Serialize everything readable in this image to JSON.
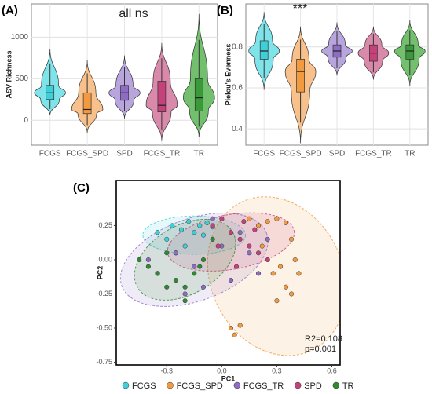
{
  "chart_data": [
    {
      "type": "violin",
      "panel_label": "(A)",
      "annotation": "all ns",
      "y_label": "ASV Richness",
      "categories": [
        "FCGS",
        "FCGS_SPD",
        "SPD",
        "FCGS_TR",
        "TR"
      ],
      "colors": [
        "#7fe3ea",
        "#f8c08a",
        "#b9a5dd",
        "#d98aab",
        "#72c06d"
      ],
      "box_colors": [
        "#3fcfd8",
        "#f39a3e",
        "#8e6cc4",
        "#c4417a",
        "#3a9a3a"
      ],
      "stats": [
        {
          "min": 60,
          "q1": 250,
          "median": 330,
          "q3": 420,
          "max": 860
        },
        {
          "min": -150,
          "q1": 80,
          "median": 130,
          "q3": 330,
          "max": 720
        },
        {
          "min": 20,
          "q1": 240,
          "median": 330,
          "q3": 420,
          "max": 780
        },
        {
          "min": -250,
          "q1": 100,
          "median": 180,
          "q3": 470,
          "max": 930
        },
        {
          "min": -200,
          "q1": 110,
          "median": 270,
          "q3": 500,
          "max": 1280
        }
      ],
      "ylim": [
        -300,
        1400
      ],
      "yticks": [
        0,
        500,
        1000
      ],
      "grid": true
    },
    {
      "type": "violin",
      "panel_label": "(B)",
      "annotation": "***",
      "y_label": "Pielou's Evenness",
      "categories": [
        "FCGS",
        "FCGS_SPD",
        "SPD",
        "FCGS_TR",
        "TR"
      ],
      "colors": [
        "#7fe3ea",
        "#f8c08a",
        "#b9a5dd",
        "#d98aab",
        "#72c06d"
      ],
      "box_colors": [
        "#3fcfd8",
        "#f39a3e",
        "#8e6cc4",
        "#c4417a",
        "#3a9a3a"
      ],
      "stats": [
        {
          "min": 0.59,
          "q1": 0.74,
          "median": 0.78,
          "q3": 0.83,
          "max": 0.97
        },
        {
          "min": 0.33,
          "q1": 0.58,
          "median": 0.68,
          "q3": 0.74,
          "max": 0.9
        },
        {
          "min": 0.66,
          "q1": 0.75,
          "median": 0.78,
          "q3": 0.81,
          "max": 0.92
        },
        {
          "min": 0.64,
          "q1": 0.73,
          "median": 0.77,
          "q3": 0.81,
          "max": 0.9
        },
        {
          "min": 0.61,
          "q1": 0.74,
          "median": 0.78,
          "q3": 0.81,
          "max": 0.93
        }
      ],
      "ylim": [
        0.32,
        1.01
      ],
      "yticks": [
        0.4,
        0.6,
        0.8
      ],
      "grid": true
    },
    {
      "type": "scatter",
      "panel_label": "(C)",
      "x_label": "PC1",
      "y_label": "PC2",
      "annotations": [
        "R2=0.108",
        "p=0.001"
      ],
      "xlim": [
        -0.575,
        0.645
      ],
      "xticks": [
        -0.3,
        {
          "value": 0,
          "label": "0.0"
        },
        0.3,
        0.6
      ],
      "ylim": [
        -0.77,
        0.58
      ],
      "yticks": [
        0.25,
        {
          "value": 0,
          "label": "0.00"
        },
        -0.25,
        {
          "value": -0.5,
          "label": "-0.50"
        },
        -0.75
      ],
      "grid": false,
      "legend": "bottom",
      "series": [
        {
          "name": "FCGS",
          "color": "#3fcfd8",
          "x": [
            -0.35,
            -0.3,
            -0.27,
            -0.22,
            -0.18,
            -0.15,
            -0.12,
            -0.08,
            -0.05,
            -0.2,
            -0.1,
            -0.25
          ],
          "values": [
            0.2,
            0.15,
            0.25,
            0.22,
            0.28,
            0.2,
            0.25,
            0.27,
            0.24,
            0.1,
            0.18,
            0.05
          ],
          "ellipse": {
            "cx": -0.15,
            "cy": 0.18,
            "rx": 0.28,
            "ry": 0.14,
            "angle": 0
          }
        },
        {
          "name": "FCGS_SPD",
          "color": "#f39a3e",
          "x": [
            0.15,
            0.2,
            0.25,
            0.3,
            0.35,
            0.38,
            0.4,
            0.32,
            0.28,
            0.22,
            0.35,
            0.3,
            0.05,
            0.07,
            0.1,
            0.42,
            0.38
          ],
          "values": [
            0.3,
            0.25,
            0.28,
            0.3,
            0.27,
            0.15,
            0.0,
            -0.05,
            -0.1,
            0.1,
            -0.2,
            -0.3,
            -0.5,
            -0.55,
            -0.48,
            -0.1,
            -0.25
          ],
          "ellipse": {
            "cx": 0.3,
            "cy": -0.12,
            "rx": 0.36,
            "ry": 0.6,
            "angle": -25
          }
        },
        {
          "name": "FCGS_TR",
          "color": "#8e6cc4",
          "x": [
            -0.4,
            -0.35,
            -0.25,
            -0.15,
            -0.1,
            0.0,
            0.05,
            0.1,
            0.15,
            -0.2,
            -0.05,
            0.2,
            0.25
          ],
          "values": [
            0.0,
            -0.1,
            0.05,
            -0.05,
            -0.2,
            0.1,
            -0.15,
            0.2,
            0.05,
            -0.25,
            0.3,
            -0.1,
            0.15
          ],
          "ellipse": {
            "cx": -0.15,
            "cy": 0.0,
            "rx": 0.42,
            "ry": 0.3,
            "angle": -20
          }
        },
        {
          "name": "SPD",
          "color": "#c4417a",
          "x": [
            -0.05,
            0.0,
            0.05,
            0.1,
            0.15,
            0.2,
            0.12,
            0.08,
            -0.02,
            0.25,
            0.18
          ],
          "values": [
            0.25,
            0.3,
            0.2,
            0.15,
            0.1,
            0.05,
            0.28,
            -0.05,
            0.1,
            0.0,
            0.22
          ],
          "ellipse": {
            "cx": 0.05,
            "cy": 0.13,
            "rx": 0.35,
            "ry": 0.2,
            "angle": -10
          }
        },
        {
          "name": "TR",
          "color": "#2f8a2f",
          "x": [
            -0.45,
            -0.4,
            -0.35,
            -0.3,
            -0.25,
            -0.2,
            -0.15,
            -0.1,
            -0.2,
            -0.3,
            -0.12,
            -0.05
          ],
          "values": [
            0.0,
            -0.05,
            -0.1,
            0.05,
            -0.15,
            -0.2,
            -0.1,
            0.0,
            -0.3,
            -0.2,
            -0.05,
            0.15
          ],
          "ellipse": {
            "cx": -0.2,
            "cy": 0.0,
            "rx": 0.3,
            "ry": 0.25,
            "angle": -30
          }
        }
      ]
    }
  ]
}
